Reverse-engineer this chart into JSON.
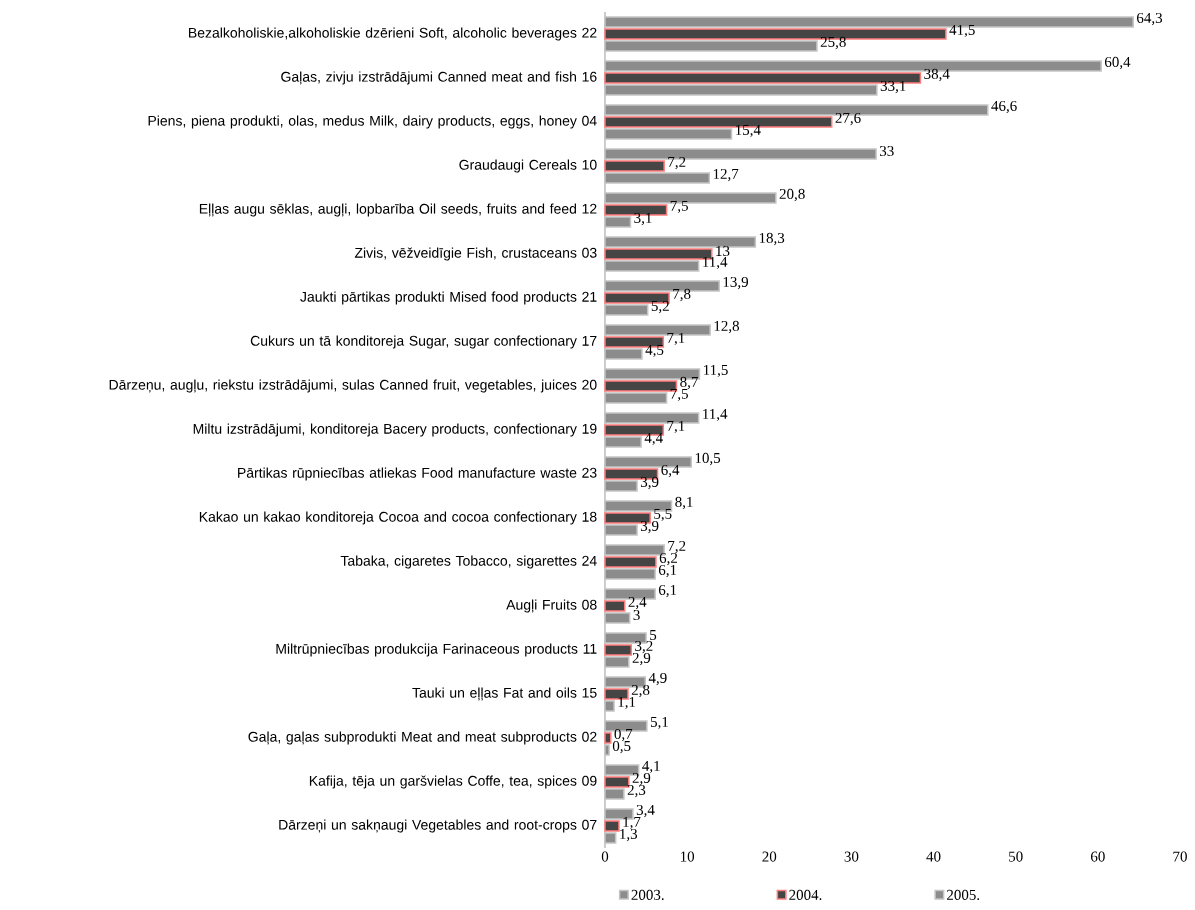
{
  "chart_data": {
    "type": "bar",
    "orientation": "horizontal",
    "legend": "bottom",
    "categories": [
      "Bezalkoholiskie,alkoholiskie dzērieni Soft, alcoholic beverages 22",
      "Gaļas, zivju izstrādājumi Canned meat and fish 16",
      "Piens, piena produkti, olas, medus Milk, dairy products, eggs, honey 04",
      "Graudaugi Cereals 10",
      "Eļļas augu sēklas, augļi, lopbarība Oil seeds, fruits and feed 12",
      "Zivis, vēžveidīgie Fish, crustaceans 03",
      "Jaukti pārtikas produkti Mised food products 21",
      "Cukurs un tā konditoreja Sugar, sugar confectionary 17",
      "Dārzeņu, augļu, riekstu izstrādājumi, sulas Canned fruit, vegetables, juices 20",
      "Miltu izstrādājumi, konditoreja Bacery products, confectionary 19",
      "Pārtikas rūpniecības atliekas Food manufacture waste 23",
      "Kakao un kakao konditoreja Cocoa and cocoa confectionary 18",
      "Tabaka, cigaretes Tobacco, sigarettes 24",
      "Augļi Fruits 08",
      "Miltrūpniecības produkcija Farinaceous products 11",
      "Tauki un eļļas Fat and oils 15",
      "Gaļa, gaļas subprodukti Meat and meat subproducts 02",
      "Kafija, tēja un garšvielas Coffe, tea, spices 09",
      "Dārzeņi un sakņaugi Vegetables and root-crops 07"
    ],
    "xlim": [
      0,
      70
    ],
    "xticks": [
      0,
      10,
      20,
      30,
      40,
      50,
      60,
      70
    ],
    "series": [
      {
        "name": "2003.",
        "color": "#8c8c8c",
        "values": [
          64.3,
          60.4,
          46.6,
          33,
          20.8,
          18.3,
          13.9,
          12.8,
          11.5,
          11.4,
          10.5,
          8.1,
          7.2,
          6.1,
          5,
          4.9,
          5.1,
          4.1,
          3.4
        ],
        "value_labels": [
          "64,3",
          "60,4",
          "46,6",
          "33",
          "20,8",
          "18,3",
          "13,9",
          "12,8",
          "11,5",
          "11,4",
          "10,5",
          "8,1",
          "7,2",
          "6,1",
          "5",
          "4,9",
          "5,1",
          "4,1",
          "3,4"
        ]
      },
      {
        "name": "2004.",
        "color": "#454545",
        "values": [
          41.5,
          38.4,
          27.6,
          7.2,
          7.5,
          13,
          7.8,
          7.1,
          8.7,
          7.1,
          6.4,
          5.5,
          6.2,
          2.4,
          3.2,
          2.8,
          0.7,
          2.9,
          1.7
        ],
        "value_labels": [
          "41,5",
          "38,4",
          "27,6",
          "7,2",
          "7,5",
          "13",
          "7,8",
          "7,1",
          "8,7",
          "7,1",
          "6,4",
          "5,5",
          "6,2",
          "2,4",
          "3,2",
          "2,8",
          "0,7",
          "2,9",
          "1,7"
        ]
      },
      {
        "name": "2005.",
        "color": "#8c8c8c",
        "values": [
          25.8,
          33.1,
          15.4,
          12.7,
          3.1,
          11.4,
          5.2,
          4.5,
          7.5,
          4.4,
          3.9,
          3.9,
          6.1,
          3,
          2.9,
          1.1,
          0.5,
          2.3,
          1.3
        ],
        "value_labels": [
          "25,8",
          "33,1",
          "15,4",
          "12,7",
          "3,1",
          "11,4",
          "5,2",
          "4,5",
          "7,5",
          "4,4",
          "3,9",
          "3,9",
          "6,1",
          "3",
          "2,9",
          "1,1",
          "0,5",
          "2,3",
          "1,3"
        ]
      }
    ]
  }
}
